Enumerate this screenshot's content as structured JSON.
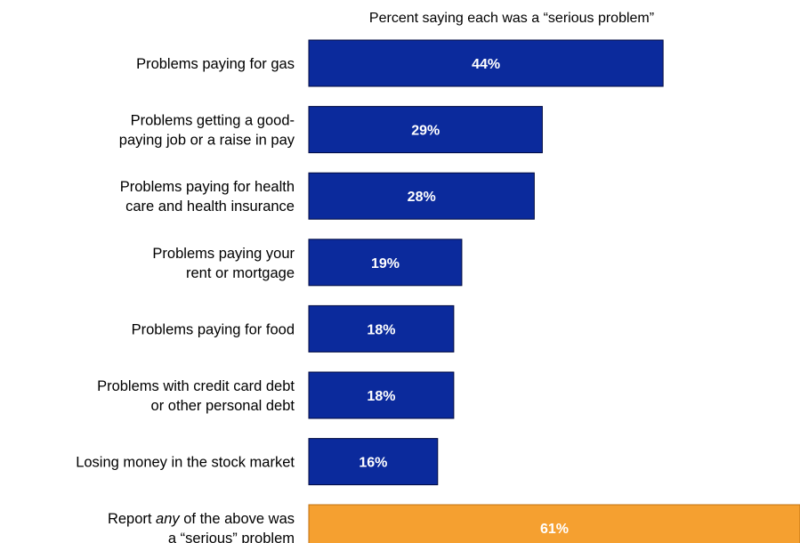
{
  "chart_data": {
    "type": "bar",
    "orientation": "horizontal",
    "title": "Percent saying each was a “serious problem”",
    "categories": [
      [
        "Problems paying for gas"
      ],
      [
        "Problems getting a good-",
        "paying job or a raise in pay"
      ],
      [
        "Problems paying for health",
        "care and health insurance"
      ],
      [
        "Problems paying your",
        "rent or mortgage"
      ],
      [
        "Problems paying for food"
      ],
      [
        "Problems with credit card debt",
        "or other personal debt"
      ],
      [
        "Losing money in the stock market"
      ],
      [
        "Report any of the above was",
        "a “serious” problem"
      ]
    ],
    "values": [
      44,
      29,
      28,
      19,
      18,
      18,
      16,
      61
    ],
    "value_labels": [
      "44%",
      "29%",
      "28%",
      "19%",
      "18%",
      "18%",
      "16%",
      "61%"
    ],
    "bar_colors": [
      "#0b2a9c",
      "#0b2a9c",
      "#0b2a9c",
      "#0b2a9c",
      "#0b2a9c",
      "#0b2a9c",
      "#0b2a9c",
      "#f5a030"
    ],
    "emphasis_word": "any",
    "xlim": [
      0,
      100
    ],
    "grid": false,
    "legend": "none"
  }
}
